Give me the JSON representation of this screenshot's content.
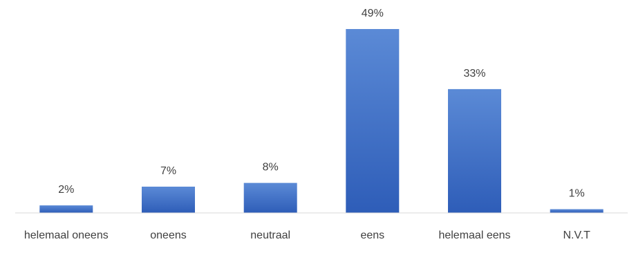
{
  "chart_data": {
    "type": "bar",
    "categories": [
      "helemaal oneens",
      "oneens",
      "neutraal",
      "eens",
      "helemaal eens",
      "N.V.T"
    ],
    "values": [
      2,
      7,
      8,
      49,
      33,
      1
    ],
    "value_labels": [
      "2%",
      "7%",
      "8%",
      "49%",
      "33%",
      "1%"
    ],
    "unit": "%",
    "title": "",
    "xlabel": "",
    "ylabel": "",
    "ylim": [
      0,
      49
    ],
    "grid": false,
    "legend": "none",
    "bar_color": "#4472C4",
    "bar_color_light": "#5B8AD6",
    "bar_color_dark": "#2E5DB8"
  }
}
